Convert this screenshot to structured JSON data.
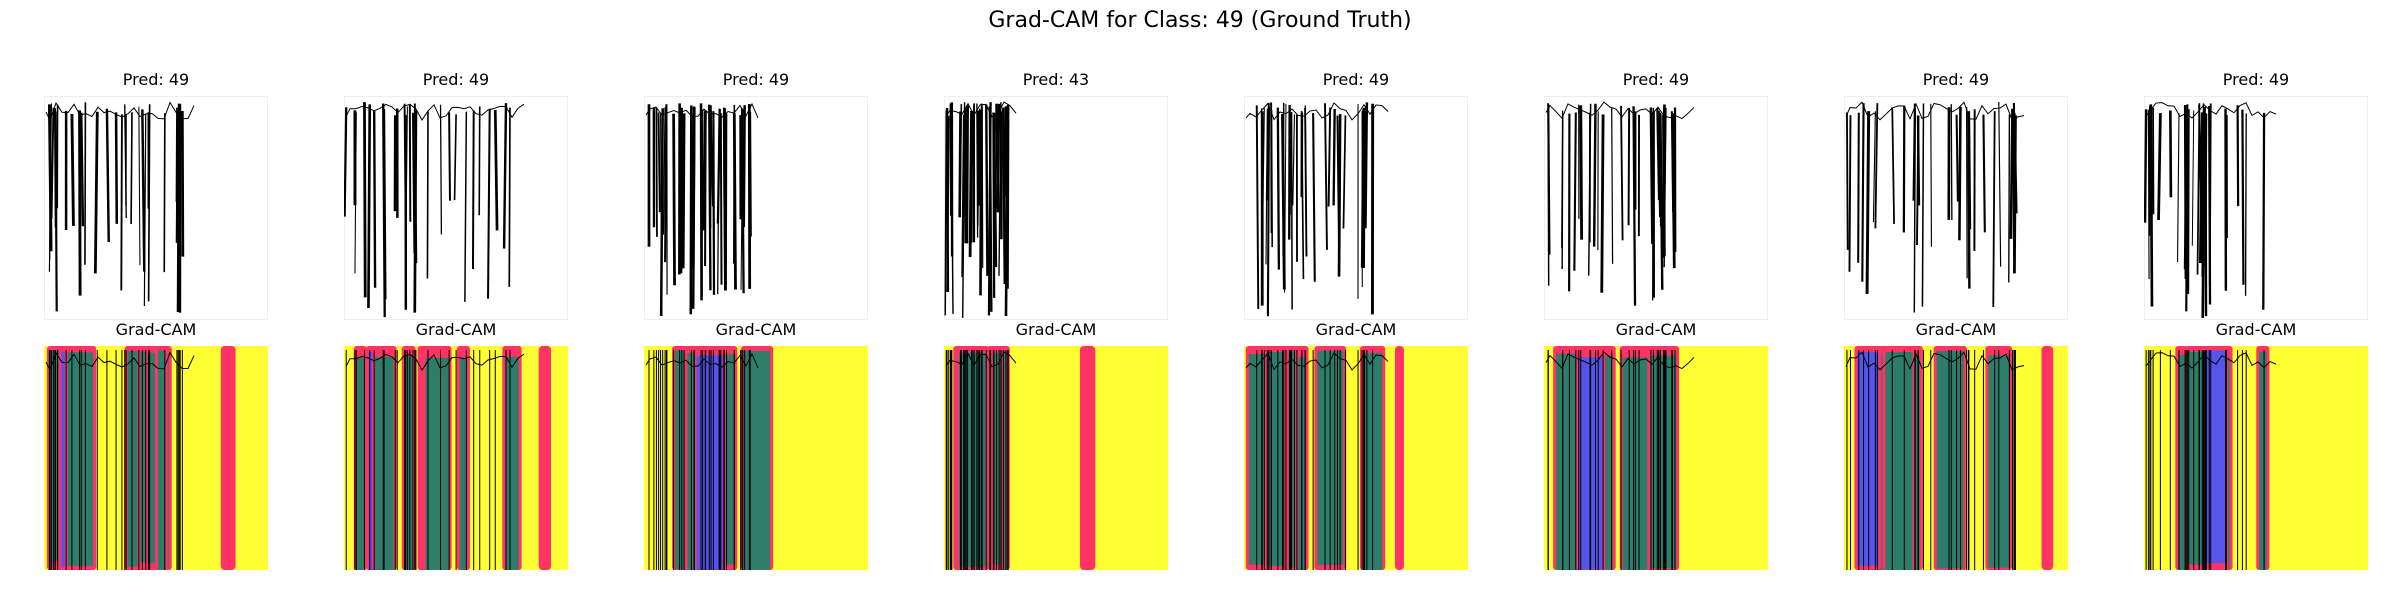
{
  "figure": {
    "title": "Grad-CAM for Class: 49 (Ground Truth)"
  },
  "columns": [
    {
      "pred_label": "Pred: 49",
      "cam_label": "Grad-CAM"
    },
    {
      "pred_label": "Pred: 49",
      "cam_label": "Grad-CAM"
    },
    {
      "pred_label": "Pred: 49",
      "cam_label": "Grad-CAM"
    },
    {
      "pred_label": "Pred: 43",
      "cam_label": "Grad-CAM"
    },
    {
      "pred_label": "Pred: 49",
      "cam_label": "Grad-CAM"
    },
    {
      "pred_label": "Pred: 49",
      "cam_label": "Grad-CAM"
    },
    {
      "pred_label": "Pred: 49",
      "cam_label": "Grad-CAM"
    },
    {
      "pred_label": "Pred: 49",
      "cam_label": "Grad-CAM"
    }
  ],
  "colors": {
    "background_heat": "#ffff33",
    "hot_stripe": "#ff3366",
    "mid_stripe": "#2e7d6b",
    "cool_stripe": "#5555ee",
    "signal_line": "#000000",
    "panel_border": "#eeeeee"
  }
}
